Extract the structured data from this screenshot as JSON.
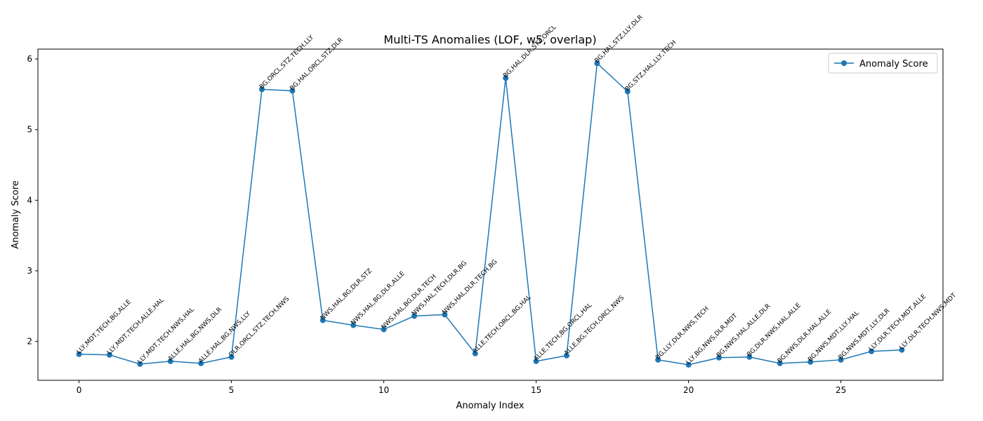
{
  "chart_data": {
    "type": "line",
    "title": "Multi-TS Anomalies (LOF, w5, overlap)",
    "xlabel": "Anomaly Index",
    "ylabel": "Anomaly Score",
    "xlim": [
      -1.35,
      28.35
    ],
    "ylim": [
      1.45,
      6.14
    ],
    "xticks": [
      0,
      5,
      10,
      15,
      20,
      25
    ],
    "yticks": [
      2,
      3,
      4,
      5,
      6
    ],
    "grid": false,
    "legend_position": "top-right",
    "series": [
      {
        "name": "Anomaly Score",
        "color": "#1f77b4",
        "marker": "circle",
        "x": [
          0,
          1,
          2,
          3,
          4,
          5,
          6,
          7,
          8,
          9,
          10,
          11,
          12,
          13,
          14,
          15,
          16,
          17,
          18,
          19,
          20,
          21,
          22,
          23,
          24,
          25,
          26,
          27
        ],
        "values": [
          1.82,
          1.81,
          1.68,
          1.72,
          1.69,
          1.78,
          5.57,
          5.55,
          2.3,
          2.23,
          2.17,
          2.36,
          2.38,
          1.83,
          5.73,
          1.72,
          1.8,
          5.94,
          5.54,
          1.74,
          1.67,
          1.77,
          1.78,
          1.69,
          1.71,
          1.74,
          1.86,
          1.88
        ]
      }
    ],
    "annotations": [
      "LLY,MDT,TECH,BG,ALLE",
      "LLY,MDT,TECH,ALLE,HAL",
      "LLY,MDT,TECH,NWS,HAL",
      "ALLE,HAL,BG,NWS,DLR",
      "ALLE,HAL,BG,NWS,LLY",
      "DLR,ORCL,STZ,TECH,NWS",
      "BG,ORCL,STZ,TECH,LLY",
      "BG,HAL,ORCL,STZ,DLR",
      "NWS,HAL,BG,DLR,STZ",
      "NWS,HAL,BG,DLR,ALLE",
      "NWS,HAL,BG,DLR,TECH",
      "NWS,HAL,TECH,DLR,BG",
      "NWS,HAL,DLR,TECH,BG",
      "ALLE,TECH,ORCL,BG,HAL",
      "BG,HAL,DLR,STZ,ORCL",
      "ALLE,TECH,BG,ORCL,HAL",
      "ALLE,BG,TECH,ORCL,NWS",
      "BG,HAL,STZ,LLY,DLR",
      "BG,STZ,HAL,LLY,TECH",
      "BG,LLY,DLR,NWS,TECH",
      "LLY,BG,NWS,DLR,MDT",
      "BG,NWS,HAL,ALLE,DLR",
      "BG,DLR,NWS,HAL,ALLE",
      "BG,NWS,DLR,HAL,ALLE",
      "BG,NWS,MDT,LLY,HAL",
      "BG,NWS,MDT,LLY,DLR",
      "LLY,DLR,TECH,MDT,ALLE",
      "LLY,DLR,TECH,NWS,MDT"
    ]
  }
}
